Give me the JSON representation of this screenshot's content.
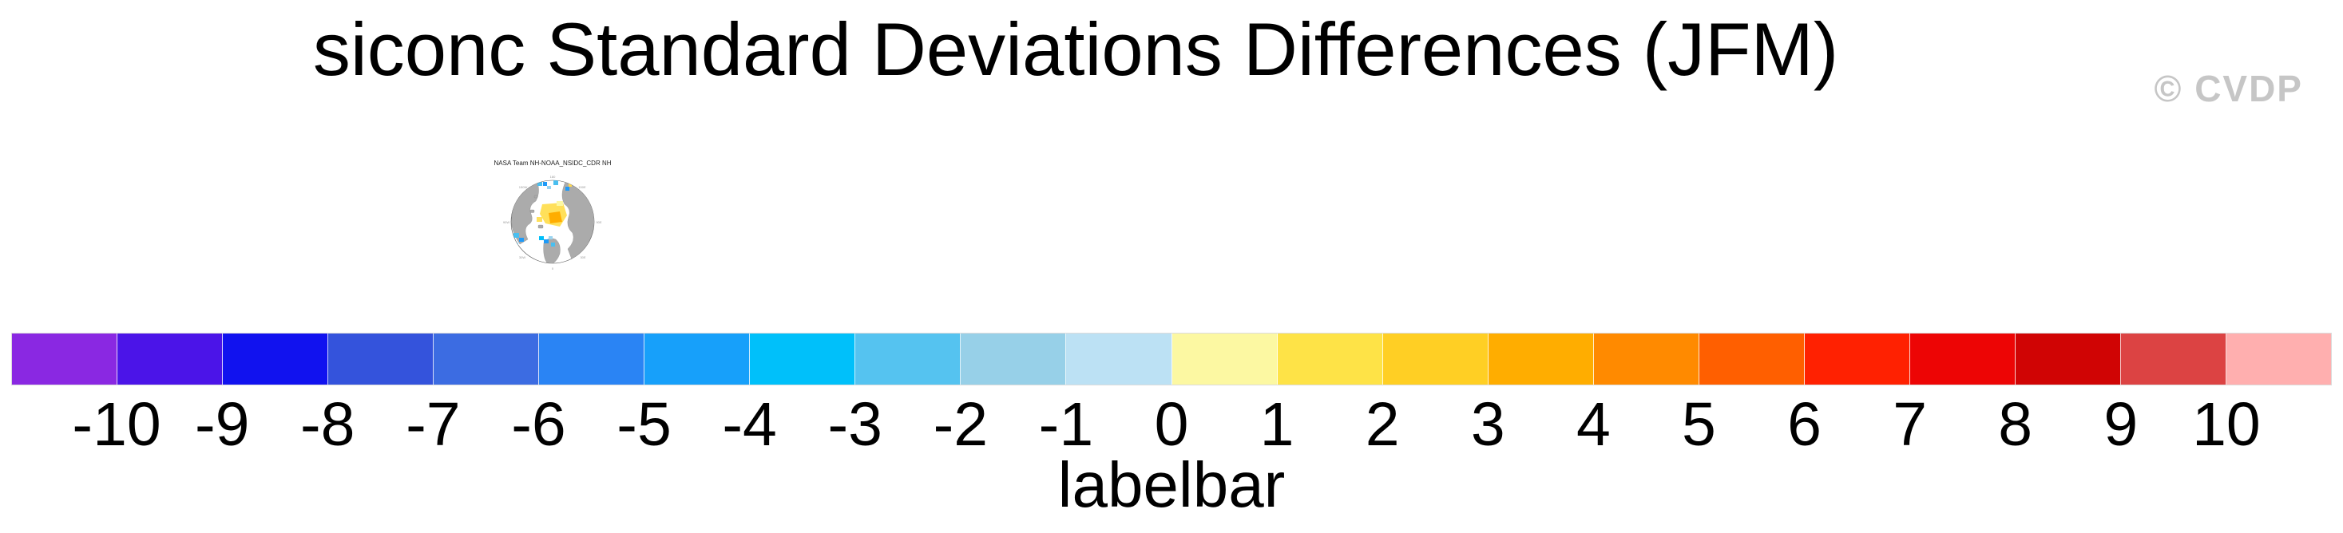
{
  "page": {
    "title": "siconc Standard Deviations Differences (JFM)",
    "watermark": "© CVDP",
    "background": "#ffffff"
  },
  "thumbnail": {
    "title": "NASA Team NH-NOAA_NSIDC_CDR NH",
    "lon_labels": [
      "180",
      "150E",
      "90E",
      "30E",
      "0",
      "30W",
      "90W",
      "150W"
    ],
    "land_color": "#ababab",
    "ocean_color": "#ffffff"
  },
  "chart_data": {
    "type": "colorbar",
    "orientation": "horizontal",
    "title": "siconc Standard Deviations Differences (JFM)",
    "label": "labelbar",
    "levels": [
      -10,
      -9,
      -8,
      -7,
      -6,
      -5,
      -4,
      -3,
      -2,
      -1,
      0,
      1,
      2,
      3,
      4,
      5,
      6,
      7,
      8,
      9,
      10
    ],
    "tick_labels": [
      "-10",
      "-9",
      "-8",
      "-7",
      "-6",
      "-5",
      "-4",
      "-3",
      "-2",
      "-1",
      "0",
      "1",
      "2",
      "3",
      "4",
      "5",
      "6",
      "7",
      "8",
      "9",
      "10"
    ],
    "colors": [
      "#8A28E2",
      "#4B14E8",
      "#1112EF",
      "#3453DC",
      "#3C6CE2",
      "#2A84F4",
      "#17A0FA",
      "#00C0FA",
      "#55C3F0",
      "#97D0E8",
      "#BCE1F4",
      "#FCF8A2",
      "#FEE347",
      "#FFCF24",
      "#FFAD00",
      "#FF8A00",
      "#FF5F00",
      "#FF2101",
      "#ED0505",
      "#D00404",
      "#DC4343",
      "#FFAFAF"
    ]
  }
}
